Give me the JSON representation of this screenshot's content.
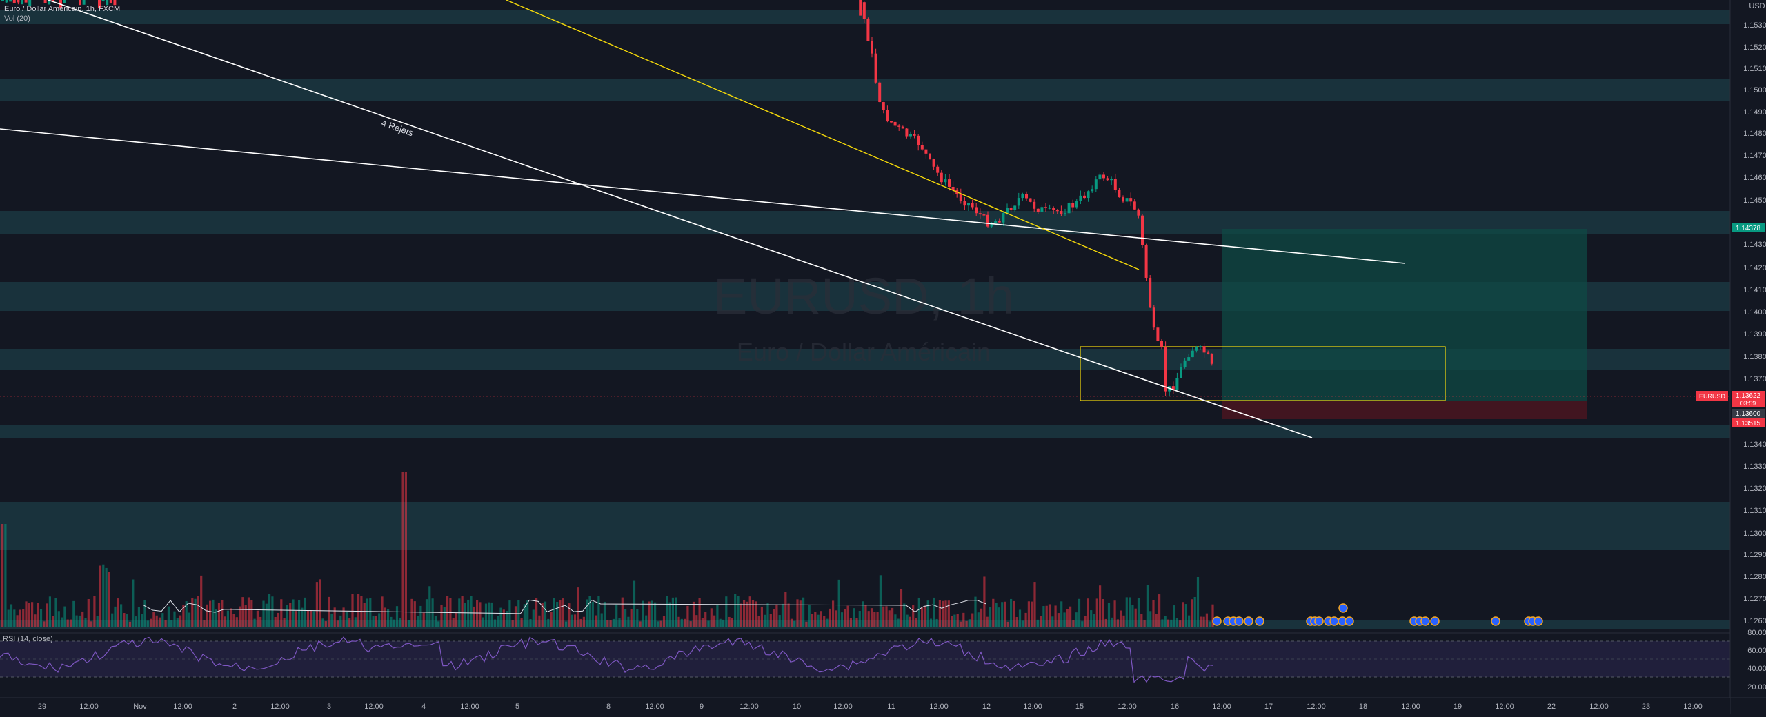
{
  "header": {
    "title": "Euro / Dollar Américain, 1h, FXCM",
    "volume_label": "Vol (20)",
    "rsi_label": "RSI (14, close)"
  },
  "watermark": {
    "symbol": "EURUSD, 1h",
    "name": "Euro / Dollar Américain"
  },
  "annotation": {
    "text": "4 Rejets"
  },
  "price_axis": {
    "currency": "USD",
    "labels": [
      "1.15300",
      "1.15200",
      "1.15100",
      "1.15000",
      "1.14900",
      "1.14800",
      "1.14700",
      "1.14600",
      "1.14500",
      "1.14300",
      "1.14200",
      "1.14100",
      "1.14000",
      "1.13900",
      "1.13800",
      "1.13700",
      "1.13400",
      "1.13300",
      "1.13200",
      "1.13100",
      "1.13000",
      "1.12900",
      "1.12800",
      "1.12700",
      "1.12600"
    ],
    "tags": [
      {
        "text": "1.14378",
        "color": "#089981"
      },
      {
        "text": "1.13622",
        "color": "#f23645"
      },
      {
        "text": "1.13600",
        "color": "#363a45"
      },
      {
        "text": "1.13515",
        "color": "#f23645"
      }
    ],
    "symbol_tag": "EURUSD",
    "countdown": "03:59"
  },
  "rsi_axis": {
    "labels": [
      "80.00",
      "60.00",
      "40.00",
      "20.00"
    ]
  },
  "time_axis": {
    "labels": [
      "29",
      "12:00",
      "Nov",
      "12:00",
      "2",
      "12:00",
      "3",
      "12:00",
      "4",
      "12:00",
      "5",
      "8",
      "12:00",
      "9",
      "12:00",
      "10",
      "12:00",
      "11",
      "12:00",
      "12",
      "12:00",
      "15",
      "12:00",
      "16",
      "12:00",
      "17",
      "12:00",
      "18",
      "12:00",
      "19",
      "12:00",
      "22",
      "12:00",
      "23",
      "12:00"
    ]
  },
  "colors": {
    "background": "#131722",
    "bull": "#089981",
    "bear": "#f23645",
    "zone": "#1c3a44",
    "trendline": "#ffffff",
    "yellow_line": "#f5d90a",
    "target": "#0f4a44",
    "stop": "#4a1520"
  }
}
